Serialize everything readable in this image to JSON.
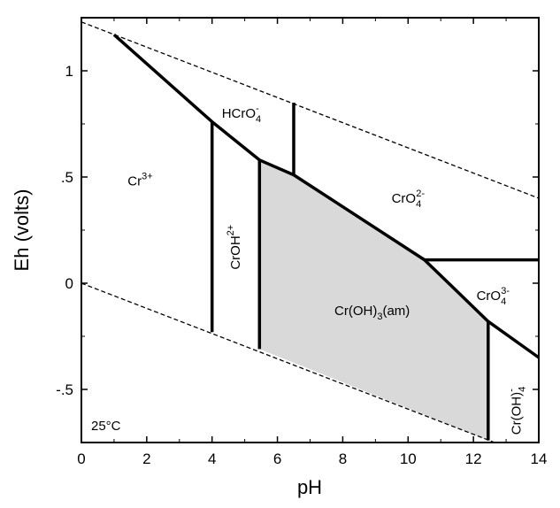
{
  "chart_data": {
    "type": "diagram",
    "xlabel": "pH",
    "ylabel": "Eh (volts)",
    "xlim": [
      0,
      14
    ],
    "ylim": [
      -0.75,
      1.25
    ],
    "x_ticks": [
      {
        "value": 0,
        "label": "0"
      },
      {
        "value": 2,
        "label": "2"
      },
      {
        "value": 4,
        "label": "4"
      },
      {
        "value": 6,
        "label": "6"
      },
      {
        "value": 8,
        "label": "8"
      },
      {
        "value": 10,
        "label": "10"
      },
      {
        "value": 12,
        "label": "12"
      },
      {
        "value": 14,
        "label": "14"
      }
    ],
    "y_ticks": [
      {
        "value": -0.5,
        "label": "-.5"
      },
      {
        "value": 0,
        "label": "0"
      },
      {
        "value": 0.5,
        "label": ".5"
      },
      {
        "value": 1,
        "label": "1"
      }
    ],
    "annotation": "25°C",
    "water_stability_lines": [
      {
        "name": "upper",
        "points": [
          [
            0,
            1.23
          ],
          [
            14,
            0.4
          ]
        ]
      },
      {
        "name": "lower",
        "points": [
          [
            0,
            0.0
          ],
          [
            14,
            -0.83
          ]
        ]
      }
    ],
    "boundaries": [
      [
        [
          1.0,
          1.17
        ],
        [
          4.0,
          0.76
        ],
        [
          5.45,
          0.58
        ],
        [
          6.5,
          0.51
        ],
        [
          10.5,
          0.11
        ],
        [
          12.45,
          -0.18
        ],
        [
          14,
          -0.35
        ]
      ],
      [
        [
          4.0,
          0.76
        ],
        [
          4.0,
          -0.23
        ]
      ],
      [
        [
          5.45,
          0.58
        ],
        [
          5.45,
          -0.31
        ]
      ],
      [
        [
          6.5,
          0.51
        ],
        [
          6.5,
          0.85
        ]
      ],
      [
        [
          10.5,
          0.11
        ],
        [
          14,
          0.11
        ]
      ],
      [
        [
          12.45,
          -0.18
        ],
        [
          12.45,
          -0.74
        ]
      ]
    ],
    "shaded_region": [
      [
        5.45,
        0.58
      ],
      [
        6.5,
        0.51
      ],
      [
        10.5,
        0.11
      ],
      [
        12.45,
        -0.18
      ],
      [
        12.45,
        -0.74
      ],
      [
        5.45,
        -0.31
      ]
    ],
    "fields": [
      {
        "id": "cr3",
        "base": "Cr",
        "sup": "3+",
        "x": 1.8,
        "y": 0.46
      },
      {
        "id": "hcro4",
        "base": "HCrO",
        "sub": "4",
        "sup": "-",
        "x": 4.9,
        "y": 0.78
      },
      {
        "id": "cro4-2",
        "base": "CrO",
        "sub": "4",
        "sup": "2-",
        "x": 10.0,
        "y": 0.38
      },
      {
        "id": "croh2",
        "base": "CrOH",
        "sup": "2+",
        "x": 4.85,
        "y": 0.17,
        "rotate": -90
      },
      {
        "id": "croh3",
        "base": "Cr(OH)",
        "sub": "3",
        "tail": "(am)",
        "x": 8.9,
        "y": -0.15
      },
      {
        "id": "cro4-3",
        "base": "CrO",
        "sub": "4",
        "sup": "3-",
        "x": 12.6,
        "y": -0.08
      },
      {
        "id": "croh4",
        "base": "Cr(OH)",
        "sub": "4",
        "sup": "-",
        "x": 13.45,
        "y": -0.6,
        "rotate": -90
      }
    ]
  }
}
